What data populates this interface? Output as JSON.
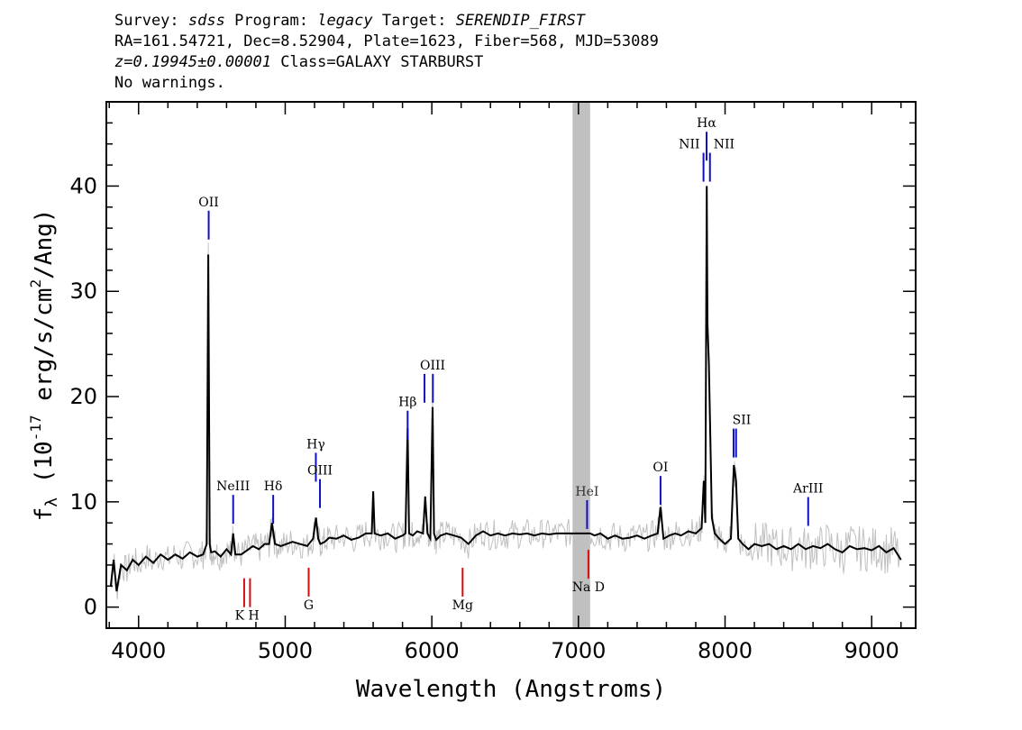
{
  "header": {
    "l1": {
      "a": "Survey: ",
      "b": "sdss",
      "c": " Program: ",
      "d": "legacy",
      "e": " Target: ",
      "f": "SERENDIP_FIRST"
    },
    "l2": "RA=161.54721, Dec=8.52904, Plate=1623, Fiber=568, MJD=53089",
    "l3": {
      "a": "z=0.19945±0.00001",
      "b": " Class=GALAXY STARBURST"
    },
    "l4": "No warnings."
  },
  "chart_data": {
    "type": "line",
    "xlabel": "Wavelength (Angstroms)",
    "ylabel": "fλ (10^-17 erg/s/cm^2/Ang)",
    "xlim": [
      3780,
      9300
    ],
    "ylim": [
      -2,
      48
    ],
    "xticks": [
      4000,
      5000,
      6000,
      7000,
      8000,
      9000
    ],
    "yticks": [
      0,
      10,
      20,
      30,
      40
    ],
    "masked_band": [
      6960,
      7080
    ],
    "colors": {
      "flux": "#000000",
      "error": "#c0c0c0",
      "emission": "#1010c0",
      "absorption": "#d01010",
      "mask": "#c0c0c0"
    },
    "spectrum": {
      "x": [
        3810,
        3830,
        3850,
        3880,
        3920,
        3960,
        4000,
        4050,
        4100,
        4150,
        4200,
        4250,
        4300,
        4350,
        4400,
        4440,
        4465,
        4475,
        4480,
        4485,
        4495,
        4520,
        4560,
        4600,
        4630,
        4645,
        4660,
        4700,
        4740,
        4780,
        4820,
        4860,
        4890,
        4910,
        4930,
        4970,
        5010,
        5050,
        5100,
        5150,
        5190,
        5210,
        5225,
        5240,
        5270,
        5300,
        5350,
        5400,
        5450,
        5500,
        5550,
        5590,
        5600,
        5610,
        5650,
        5700,
        5750,
        5800,
        5820,
        5835,
        5845,
        5870,
        5900,
        5940,
        5955,
        5970,
        5990,
        6005,
        6015,
        6030,
        6060,
        6100,
        6150,
        6200,
        6250,
        6300,
        6350,
        6400,
        6450,
        6500,
        6550,
        6600,
        6650,
        6700,
        6750,
        6800,
        6850,
        6900,
        6950,
        7000,
        7050,
        7080,
        7110,
        7150,
        7200,
        7250,
        7300,
        7350,
        7400,
        7450,
        7500,
        7540,
        7560,
        7580,
        7620,
        7660,
        7700,
        7750,
        7800,
        7840,
        7855,
        7865,
        7875,
        7880,
        7890,
        7900,
        7910,
        7930,
        7960,
        8000,
        8040,
        8060,
        8075,
        8090,
        8120,
        8160,
        8200,
        8250,
        8300,
        8350,
        8400,
        8450,
        8500,
        8550,
        8600,
        8650,
        8700,
        8750,
        8800,
        8850,
        8900,
        8950,
        9000,
        9050,
        9100,
        9150,
        9200
      ],
      "y": [
        2.0,
        4.5,
        1.5,
        4.0,
        3.5,
        4.5,
        4.0,
        4.8,
        4.2,
        5.0,
        4.5,
        5.0,
        4.6,
        5.2,
        4.8,
        5.0,
        6.0,
        33.5,
        20.0,
        6.0,
        5.2,
        5.3,
        4.8,
        5.5,
        5.0,
        7.0,
        5.0,
        5.0,
        5.4,
        5.8,
        5.5,
        6.0,
        6.0,
        8.0,
        6.0,
        5.8,
        6.0,
        6.2,
        6.0,
        5.8,
        6.5,
        8.5,
        6.5,
        6.0,
        6.2,
        6.6,
        6.5,
        6.8,
        6.4,
        6.6,
        7.0,
        7.0,
        11.0,
        7.0,
        6.8,
        7.0,
        6.5,
        6.8,
        7.0,
        17.0,
        7.0,
        6.8,
        7.2,
        7.0,
        10.5,
        7.0,
        6.5,
        19.0,
        7.0,
        6.4,
        6.8,
        7.0,
        6.8,
        6.6,
        6.0,
        6.8,
        7.2,
        6.8,
        7.0,
        6.8,
        7.0,
        6.9,
        7.0,
        6.8,
        7.0,
        6.9,
        7.0,
        7.0,
        7.0,
        7.0,
        7.0,
        7.0,
        6.8,
        7.0,
        6.5,
        6.8,
        6.5,
        6.6,
        6.8,
        6.5,
        6.8,
        7.0,
        9.5,
        6.5,
        6.8,
        7.0,
        6.8,
        7.2,
        7.0,
        7.5,
        12.0,
        8.0,
        40.0,
        27.0,
        23.0,
        16.0,
        8.5,
        7.0,
        6.5,
        6.0,
        6.5,
        13.5,
        12.0,
        6.5,
        6.0,
        5.5,
        6.0,
        5.8,
        6.0,
        5.5,
        5.8,
        5.5,
        6.0,
        5.5,
        5.8,
        5.6,
        6.0,
        5.5,
        5.2,
        5.8,
        5.5,
        5.6,
        5.4,
        5.8,
        5.2,
        5.6,
        4.5
      ]
    },
    "emission_lines": [
      {
        "label": "OII",
        "wavelength": 4478,
        "label_y": 38.0
      },
      {
        "label": "NeIII",
        "wavelength": 4645,
        "label_y": 11.0
      },
      {
        "label": "Hδ",
        "wavelength": 4918,
        "label_y": 11.0
      },
      {
        "label": "Hγ",
        "wavelength": 5209,
        "label_y": 15.0
      },
      {
        "label": "OIII",
        "wavelength": 5237,
        "label_y": 12.5
      },
      {
        "label": "Hβ",
        "wavelength": 5835,
        "label_y": 19.0
      },
      {
        "label": "OIII",
        "wavelength": 5950,
        "label_y": 22.5
      },
      {
        "label": "OIII",
        "wavelength": 6007,
        "label_y": 22.5
      },
      {
        "label": "HeI",
        "wavelength": 7059,
        "label_y": 10.5
      },
      {
        "label": "OI",
        "wavelength": 7560,
        "label_y": 12.8
      },
      {
        "label": "NII",
        "wavelength": 7853,
        "label_y": 43.5
      },
      {
        "label": "Hα",
        "wavelength": 7874,
        "label_y": 45.5
      },
      {
        "label": "NII",
        "wavelength": 7897,
        "label_y": 43.5
      },
      {
        "label": "SII",
        "wavelength": 8058,
        "label_y": 17.3
      },
      {
        "label": "SII",
        "wavelength": 8075,
        "label_y": 17.3
      },
      {
        "label": "ArIII",
        "wavelength": 8567,
        "label_y": 10.8
      }
    ],
    "absorption_lines": [
      {
        "label": "K",
        "wavelength": 4720,
        "label_y": -1.2
      },
      {
        "label": "H",
        "wavelength": 4760,
        "label_y": -1.2
      },
      {
        "label": "G",
        "wavelength": 5160,
        "label_y": -0.2
      },
      {
        "label": "Mg",
        "wavelength": 6210,
        "label_y": -0.2
      },
      {
        "label": "Na",
        "wavelength": 7068,
        "label_y": 1.5
      }
    ],
    "text_labels": {
      "kh": "K H",
      "na": "Na D"
    }
  }
}
